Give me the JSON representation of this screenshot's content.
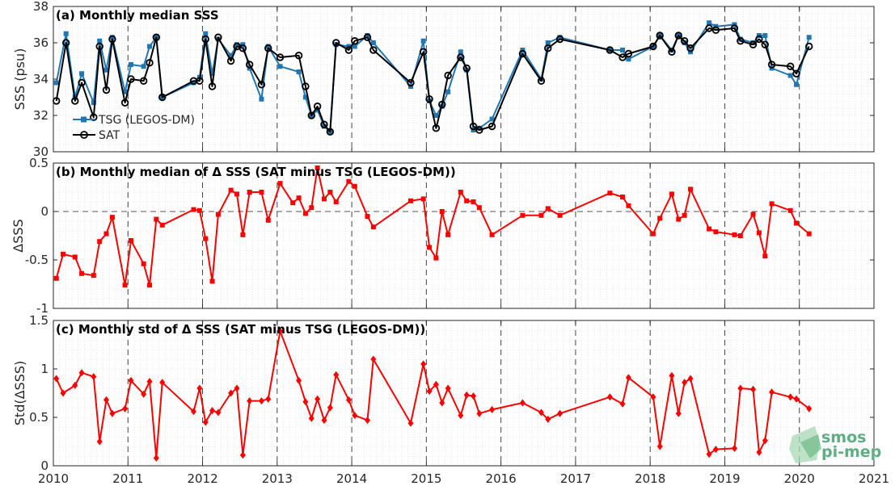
{
  "x_ticks": [
    "2010",
    "2011",
    "2012",
    "2013",
    "2014",
    "2015",
    "2016",
    "2017",
    "2018",
    "2019",
    "2020",
    "2021"
  ],
  "logo": {
    "line1": "smos",
    "line2": "pi-mep"
  },
  "colors": {
    "tsg": "#1f77b4",
    "sat": "#000000",
    "delta": "#ff0000",
    "zero_line": "#555555"
  },
  "chart_data": [
    {
      "type": "line",
      "title": "(a) Monthly median SSS",
      "ylabel": "SSS (psu)",
      "xlim": [
        2010,
        2021
      ],
      "ylim": [
        30,
        38
      ],
      "yticks": [
        "30",
        "32",
        "34",
        "36",
        "38"
      ],
      "grid": true,
      "legend": "left",
      "series": [
        {
          "name": "TSG (LEGOS-DM)",
          "marker": "square",
          "x": [
            2010.04,
            2010.17,
            2010.29,
            2010.38,
            2010.54,
            2010.62,
            2010.71,
            2010.79,
            2010.96,
            2011.04,
            2011.21,
            2011.29,
            2011.38,
            2011.46,
            2011.88,
            2011.96,
            2012.04,
            2012.13,
            2012.21,
            2012.38,
            2012.46,
            2012.54,
            2012.63,
            2012.79,
            2012.88,
            2013.04,
            2013.29,
            2013.38,
            2013.46,
            2013.54,
            2013.63,
            2013.71,
            2013.79,
            2013.96,
            2014.04,
            2014.21,
            2014.29,
            2014.79,
            2014.96,
            2015.04,
            2015.13,
            2015.21,
            2015.29,
            2015.46,
            2015.54,
            2015.63,
            2015.71,
            2015.88,
            2016.29,
            2016.54,
            2016.63,
            2016.79,
            2017.46,
            2017.63,
            2017.71,
            2018.04,
            2018.13,
            2018.29,
            2018.38,
            2018.46,
            2018.54,
            2018.79,
            2018.88,
            2019.13,
            2019.21,
            2019.38,
            2019.46,
            2019.54,
            2019.63,
            2019.88,
            2019.96,
            2020.13
          ],
          "y": [
            33.8,
            36.5,
            33.0,
            34.3,
            32.7,
            36.1,
            34.5,
            36.3,
            33.3,
            34.8,
            34.7,
            35.8,
            36.3,
            33.0,
            33.8,
            34.1,
            36.5,
            34.3,
            36.2,
            35.3,
            35.9,
            35.9,
            34.6,
            32.9,
            35.8,
            34.7,
            34.4,
            33.0,
            32.0,
            32.3,
            31.4,
            31.1,
            35.9,
            35.8,
            35.8,
            36.4,
            36.0,
            33.6,
            36.1,
            32.8,
            32.0,
            32.5,
            33.3,
            35.5,
            34.5,
            31.2,
            31.3,
            31.8,
            35.6,
            34.0,
            36.0,
            36.3,
            35.6,
            35.6,
            35.1,
            35.8,
            36.4,
            35.6,
            36.4,
            36.0,
            35.5,
            37.1,
            36.9,
            37.0,
            36.2,
            36.0,
            36.4,
            36.4,
            34.6,
            34.2,
            33.7,
            36.3
          ]
        },
        {
          "name": "SAT",
          "marker": "circle",
          "x": [
            2010.04,
            2010.17,
            2010.29,
            2010.38,
            2010.54,
            2010.62,
            2010.71,
            2010.79,
            2010.96,
            2011.04,
            2011.21,
            2011.29,
            2011.38,
            2011.46,
            2011.88,
            2011.96,
            2012.04,
            2012.13,
            2012.21,
            2012.38,
            2012.46,
            2012.54,
            2012.63,
            2012.79,
            2012.88,
            2013.04,
            2013.29,
            2013.38,
            2013.46,
            2013.54,
            2013.63,
            2013.71,
            2013.79,
            2013.96,
            2014.04,
            2014.21,
            2014.29,
            2014.79,
            2014.96,
            2015.04,
            2015.13,
            2015.21,
            2015.29,
            2015.46,
            2015.54,
            2015.63,
            2015.71,
            2015.88,
            2016.29,
            2016.54,
            2016.63,
            2016.79,
            2017.46,
            2017.63,
            2017.71,
            2018.04,
            2018.13,
            2018.29,
            2018.38,
            2018.46,
            2018.54,
            2018.79,
            2018.88,
            2019.13,
            2019.21,
            2019.38,
            2019.46,
            2019.54,
            2019.63,
            2019.88,
            2019.96,
            2020.13
          ],
          "y": [
            32.8,
            36.0,
            32.8,
            33.8,
            31.9,
            35.8,
            33.4,
            36.2,
            32.7,
            34.0,
            33.9,
            34.9,
            36.3,
            33.0,
            33.9,
            33.9,
            36.2,
            33.6,
            36.3,
            35.0,
            35.8,
            35.7,
            34.8,
            33.7,
            35.7,
            35.2,
            35.3,
            33.6,
            32.0,
            32.5,
            31.5,
            31.1,
            36.0,
            35.6,
            36.1,
            36.3,
            35.6,
            33.8,
            35.5,
            32.9,
            31.3,
            32.6,
            34.2,
            35.2,
            34.6,
            31.4,
            31.2,
            31.4,
            35.4,
            33.9,
            35.7,
            36.2,
            35.6,
            35.2,
            35.4,
            35.8,
            36.4,
            35.5,
            36.4,
            36.1,
            35.7,
            36.8,
            36.7,
            36.8,
            36.1,
            35.9,
            36.2,
            35.9,
            34.8,
            34.7,
            34.3,
            35.8
          ]
        }
      ]
    },
    {
      "type": "line",
      "title": "(b) Monthly median of Δ SSS (SAT minus TSG (LEGOS-DM))",
      "ylabel": "ΔSSS",
      "xlim": [
        2010,
        2021
      ],
      "ylim": [
        -1,
        0.5
      ],
      "yticks": [
        "-1",
        "-0.5",
        "0",
        "0.5"
      ],
      "grid": true,
      "series": [
        {
          "name": "",
          "marker": "square",
          "x": [
            2010.04,
            2010.13,
            2010.29,
            2010.38,
            2010.54,
            2010.62,
            2010.71,
            2010.79,
            2010.96,
            2011.04,
            2011.21,
            2011.29,
            2011.38,
            2011.46,
            2011.88,
            2011.96,
            2012.04,
            2012.13,
            2012.21,
            2012.38,
            2012.46,
            2012.54,
            2012.63,
            2012.79,
            2012.88,
            2013.04,
            2013.21,
            2013.29,
            2013.38,
            2013.46,
            2013.54,
            2013.63,
            2013.71,
            2013.79,
            2013.96,
            2014.04,
            2014.21,
            2014.29,
            2014.79,
            2014.96,
            2015.04,
            2015.13,
            2015.21,
            2015.29,
            2015.46,
            2015.54,
            2015.63,
            2015.71,
            2015.88,
            2016.29,
            2016.54,
            2016.63,
            2016.79,
            2017.46,
            2017.63,
            2017.71,
            2018.04,
            2018.13,
            2018.29,
            2018.38,
            2018.46,
            2018.54,
            2018.79,
            2018.88,
            2019.13,
            2019.21,
            2019.38,
            2019.46,
            2019.54,
            2019.63,
            2019.88,
            2019.96,
            2020.13
          ],
          "y": [
            -0.69,
            -0.44,
            -0.47,
            -0.64,
            -0.66,
            -0.31,
            -0.23,
            -0.06,
            -0.76,
            -0.3,
            -0.54,
            -0.76,
            -0.08,
            -0.14,
            0.02,
            0.01,
            -0.28,
            -0.72,
            -0.03,
            0.22,
            0.18,
            -0.24,
            0.2,
            0.2,
            -0.09,
            0.29,
            0.09,
            0.14,
            -0.02,
            0.04,
            0.45,
            0.13,
            0.2,
            0.1,
            0.31,
            0.26,
            -0.05,
            -0.16,
            0.11,
            0.13,
            -0.37,
            -0.48,
            0.0,
            -0.24,
            0.2,
            0.11,
            0.1,
            0.04,
            -0.24,
            -0.04,
            -0.04,
            0.03,
            -0.04,
            0.19,
            0.15,
            0.06,
            -0.23,
            -0.07,
            0.18,
            -0.08,
            -0.04,
            0.23,
            -0.18,
            -0.21,
            -0.24,
            -0.25,
            -0.03,
            -0.22,
            -0.46,
            0.08,
            0.01,
            -0.12,
            -0.23
          ]
        }
      ]
    },
    {
      "type": "line",
      "title": "(c) Monthly std of Δ SSS (SAT minus TSG (LEGOS-DM))",
      "ylabel": "Std(ΔSSS)",
      "xlim": [
        2010,
        2021
      ],
      "ylim": [
        0,
        1.5
      ],
      "yticks": [
        "0",
        "0.5",
        "1",
        "1.5"
      ],
      "grid": true,
      "series": [
        {
          "name": "",
          "marker": "diamond",
          "x": [
            2010.04,
            2010.13,
            2010.29,
            2010.38,
            2010.54,
            2010.62,
            2010.71,
            2010.79,
            2010.96,
            2011.04,
            2011.21,
            2011.29,
            2011.38,
            2011.46,
            2011.88,
            2011.96,
            2012.04,
            2012.13,
            2012.21,
            2012.38,
            2012.46,
            2012.54,
            2012.63,
            2012.79,
            2012.88,
            2013.04,
            2013.29,
            2013.38,
            2013.46,
            2013.54,
            2013.63,
            2013.71,
            2013.79,
            2013.96,
            2014.04,
            2014.21,
            2014.29,
            2014.79,
            2014.96,
            2015.04,
            2015.13,
            2015.21,
            2015.29,
            2015.46,
            2015.54,
            2015.63,
            2015.71,
            2015.88,
            2016.29,
            2016.54,
            2016.63,
            2016.79,
            2017.46,
            2017.63,
            2017.71,
            2018.04,
            2018.13,
            2018.29,
            2018.38,
            2018.46,
            2018.54,
            2018.79,
            2018.88,
            2019.13,
            2019.21,
            2019.38,
            2019.46,
            2019.54,
            2019.63,
            2019.88,
            2019.96,
            2020.13
          ],
          "y": [
            0.9,
            0.75,
            0.83,
            0.96,
            0.92,
            0.25,
            0.68,
            0.54,
            0.59,
            0.88,
            0.74,
            0.87,
            0.08,
            0.86,
            0.56,
            0.8,
            0.45,
            0.57,
            0.55,
            0.75,
            0.8,
            0.11,
            0.67,
            0.67,
            0.69,
            1.39,
            0.88,
            0.66,
            0.49,
            0.69,
            0.47,
            0.6,
            0.94,
            0.68,
            0.52,
            0.47,
            1.1,
            0.44,
            1.05,
            0.77,
            0.84,
            0.65,
            0.8,
            0.52,
            0.73,
            0.72,
            0.54,
            0.58,
            0.65,
            0.55,
            0.48,
            0.54,
            0.71,
            0.64,
            0.91,
            0.71,
            0.2,
            0.93,
            0.54,
            0.86,
            0.9,
            0.12,
            0.17,
            0.18,
            0.8,
            0.79,
            0.14,
            0.26,
            0.76,
            0.71,
            0.69,
            0.59
          ]
        }
      ]
    }
  ]
}
